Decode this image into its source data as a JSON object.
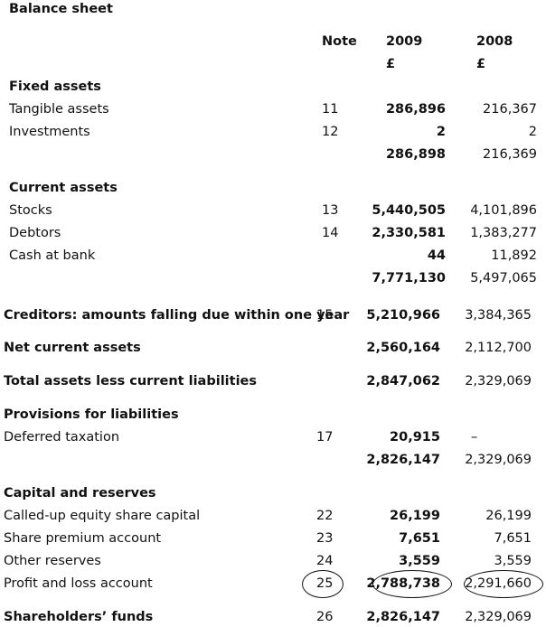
{
  "title": "Balance sheet",
  "headers": {
    "note": "Note",
    "y2009": "2009",
    "y2008": "2008",
    "currency2009": "£",
    "currency2008": "£"
  },
  "fixed": {
    "heading": "Fixed assets",
    "rows": [
      {
        "label": "Tangible assets",
        "note": "11",
        "y2009": "286,896",
        "y2008": "216,367"
      },
      {
        "label": "Investments",
        "note": "12",
        "y2009": "2",
        "y2008": "2"
      }
    ],
    "total": {
      "y2009": "286,898",
      "y2008": "216,369"
    }
  },
  "current": {
    "heading": "Current assets",
    "rows": [
      {
        "label": "Stocks",
        "note": "13",
        "y2009": "5,440,505",
        "y2008": "4,101,896"
      },
      {
        "label": "Debtors",
        "note": "14",
        "y2009": "2,330,581",
        "y2008": "1,383,277"
      },
      {
        "label": "Cash at bank",
        "note": "",
        "y2009": "44",
        "y2008": "11,892"
      }
    ],
    "total": {
      "y2009": "7,771,130",
      "y2008": "5,497,065"
    }
  },
  "creditors": {
    "label": "Creditors: amounts falling due within one year",
    "note": "15",
    "y2009": "5,210,966",
    "y2008": "3,384,365"
  },
  "net_current": {
    "label": "Net current assets",
    "y2009": "2,560,164",
    "y2008": "2,112,700"
  },
  "total_assets": {
    "label": "Total assets less current liabilities",
    "y2009": "2,847,062",
    "y2008": "2,329,069"
  },
  "provisions": {
    "heading": "Provisions for liabilities",
    "row": {
      "label": "Deferred taxation",
      "note": "17",
      "y2009": "20,915",
      "y2008": "–"
    },
    "total": {
      "y2009": "2,826,147",
      "y2008": "2,329,069"
    }
  },
  "capital": {
    "heading": "Capital and reserves",
    "rows": [
      {
        "label": "Called-up equity share capital",
        "note": "22",
        "y2009": "26,199",
        "y2008": "26,199"
      },
      {
        "label": "Share premium account",
        "note": "23",
        "y2009": "7,651",
        "y2008": "7,651"
      },
      {
        "label": "Other reserves",
        "note": "24",
        "y2009": "3,559",
        "y2008": "3,559"
      },
      {
        "label": "Profit and loss account",
        "note": "25",
        "y2009": "2,788,738",
        "y2008": "2,291,660"
      }
    ]
  },
  "shareholders": {
    "label": "Shareholders’ funds",
    "note": "26",
    "y2009": "2,826,147",
    "y2008": "2,329,069"
  }
}
